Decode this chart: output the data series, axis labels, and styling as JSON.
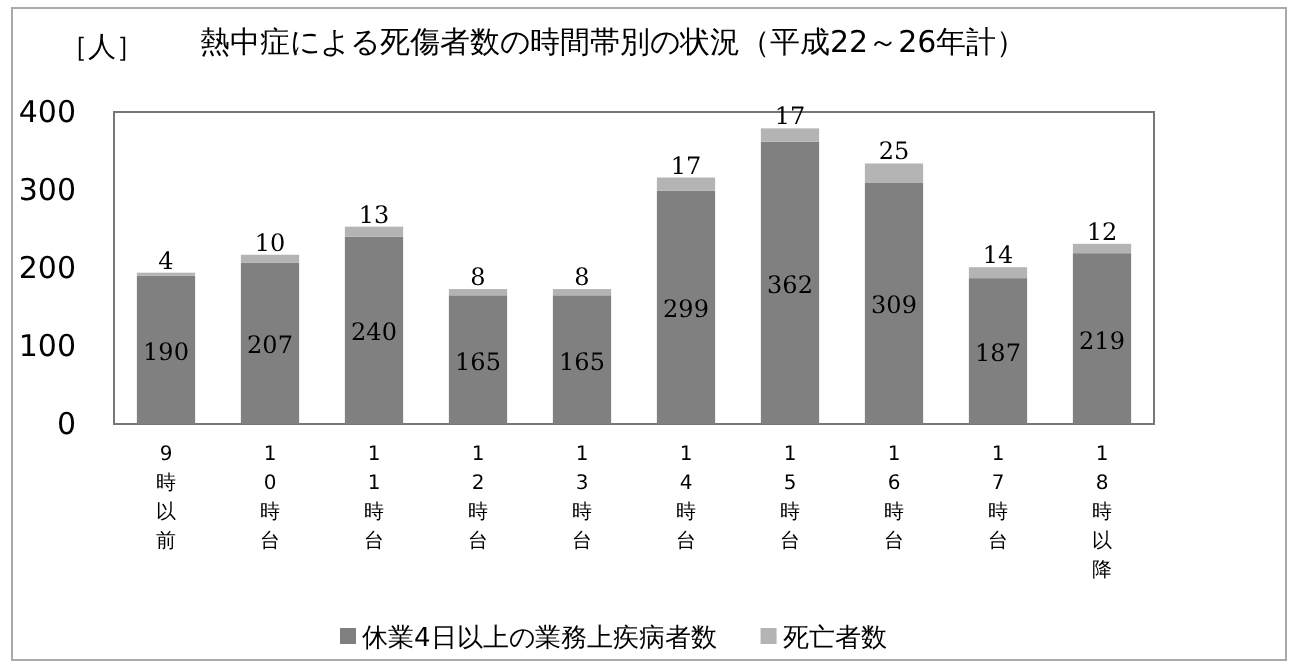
{
  "chart_data": {
    "type": "bar",
    "title": "熱中症による死傷者数の時間帯別の状況（平成22～26年計）",
    "ylabel": "［人］",
    "categories": [
      "9時以前",
      "10時台",
      "11時台",
      "12時台",
      "13時台",
      "14時台",
      "15時台",
      "16時台",
      "17時台",
      "18時以降"
    ],
    "stacked": true,
    "data_labels": true,
    "legend": "bottom",
    "grid": false,
    "ylim": [
      0,
      400
    ],
    "yticks": [
      0,
      100,
      200,
      300,
      400
    ],
    "series": [
      {
        "name": "休業4日以上の業務上疾病者数",
        "color": "#808080",
        "values": [
          190,
          207,
          240,
          165,
          165,
          299,
          362,
          309,
          187,
          219
        ]
      },
      {
        "name": "死亡者数",
        "color": "#b4b4b4",
        "values": [
          4,
          10,
          13,
          8,
          8,
          17,
          17,
          25,
          14,
          12
        ]
      }
    ]
  }
}
